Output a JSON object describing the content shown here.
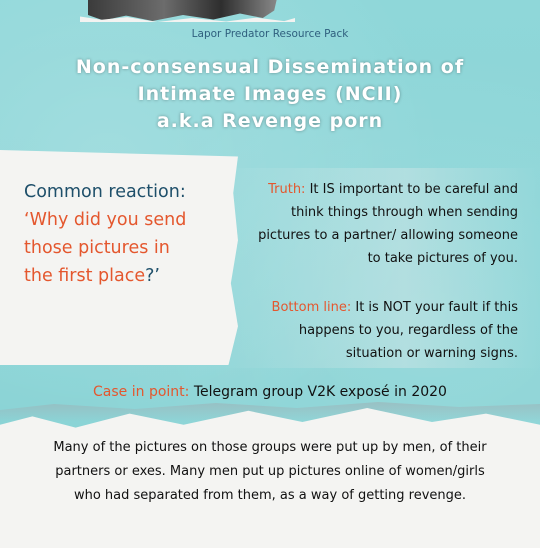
{
  "header": {
    "pack_label": "Lapor Predator Resource Pack",
    "title_lines": [
      "Non-consensual Dissemination of",
      "Intimate Images (NCII)",
      "a.k.a Revenge porn"
    ]
  },
  "common_reaction": {
    "heading": "Common reaction:",
    "quote_lines": [
      "‘Why did you send",
      "those pictures in",
      "the first place"
    ],
    "quote_end": "?’"
  },
  "truth": {
    "label": "Truth:",
    "lines": [
      "It IS important to be careful and",
      "think things through when sending",
      "pictures to a partner/ allowing someone",
      "to take pictures of you."
    ]
  },
  "bottom_line": {
    "label": "Bottom line:",
    "lines": [
      "It is NOT your fault if this",
      "happens to you, regardless of the",
      "situation or warning signs."
    ]
  },
  "case_in_point": {
    "label": "Case in point:",
    "text": "Telegram group V2K exposé in 2020"
  },
  "explanation": {
    "lines": [
      "Many of the pictures on those groups were put up by men, of their",
      "partners or exes. Many men put up pictures online of women/girls",
      "who had separated from them, as a way of getting revenge."
    ]
  },
  "colors": {
    "background_teal": "#8ed6d8",
    "accent_orange": "#e4572e",
    "heading_navy": "#1e4f6a",
    "paper_white": "#f4f4f2"
  }
}
